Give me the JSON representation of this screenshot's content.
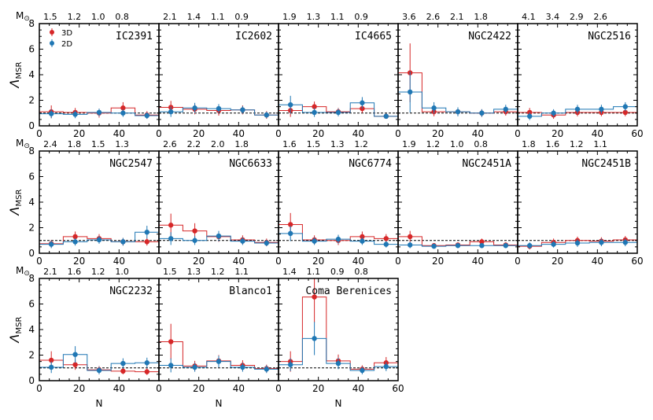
{
  "colors": {
    "3D": "#d62728",
    "2D": "#1f77b4"
  },
  "shared": {
    "xlabel": "N",
    "ylabel_main": "Λ",
    "ylabel_sub": "MSR",
    "mass_label": "M",
    "mass_symbol": "⊙",
    "xlim": [
      0,
      60
    ],
    "ylim": [
      0,
      8
    ],
    "xticks": [
      "0",
      "20",
      "40",
      "60"
    ],
    "yticks": [
      "0",
      "2",
      "4",
      "6",
      "8"
    ],
    "reference_line": 1,
    "legend": [
      "3D",
      "2D"
    ]
  },
  "chart_data": [
    {
      "type": "step-errorbar",
      "title": "IC2391",
      "mass_ticks": [
        "1.5",
        "1.2",
        "1.0",
        "0.8"
      ],
      "x": [
        6,
        18,
        30,
        42,
        54
      ],
      "series": [
        {
          "name": "3D",
          "values": [
            1.1,
            1.05,
            1.0,
            1.4,
            0.85
          ],
          "errors": [
            0.5,
            0.35,
            0.35,
            0.45,
            0.3
          ]
        },
        {
          "name": "2D",
          "values": [
            0.95,
            0.9,
            1.05,
            1.0,
            0.8
          ],
          "errors": [
            0.35,
            0.3,
            0.3,
            0.3,
            0.25
          ]
        }
      ]
    },
    {
      "type": "step-errorbar",
      "title": "IC2602",
      "mass_ticks": [
        "2.1",
        "1.4",
        "1.1",
        "0.9"
      ],
      "x": [
        6,
        18,
        30,
        42,
        54
      ],
      "series": [
        {
          "name": "3D",
          "values": [
            1.45,
            1.3,
            1.2,
            1.25,
            0.85
          ],
          "errors": [
            0.5,
            0.4,
            0.4,
            0.35,
            0.3
          ]
        },
        {
          "name": "2D",
          "values": [
            1.1,
            1.4,
            1.35,
            1.25,
            0.85
          ],
          "errors": [
            0.4,
            0.4,
            0.35,
            0.3,
            0.25
          ]
        }
      ]
    },
    {
      "type": "step-errorbar",
      "title": "IC4665",
      "mass_ticks": [
        "1.9",
        "1.3",
        "1.1",
        "0.9"
      ],
      "x": [
        6,
        18,
        30,
        42,
        54
      ],
      "series": [
        {
          "name": "3D",
          "values": [
            1.2,
            1.5,
            1.1,
            1.35,
            0.75
          ],
          "errors": [
            0.5,
            0.4,
            0.3,
            0.35,
            0.2
          ]
        },
        {
          "name": "2D",
          "values": [
            1.65,
            1.05,
            1.05,
            1.8,
            0.75
          ],
          "errors": [
            0.7,
            0.35,
            0.3,
            0.45,
            0.2
          ]
        }
      ]
    },
    {
      "type": "step-errorbar",
      "title": "NGC2422",
      "mass_ticks": [
        "3.6",
        "2.6",
        "2.1",
        "1.8"
      ],
      "x": [
        6,
        18,
        30,
        42,
        54
      ],
      "series": [
        {
          "name": "3D",
          "values": [
            4.15,
            1.1,
            1.1,
            1.0,
            1.1
          ],
          "errors": [
            2.3,
            0.35,
            0.3,
            0.3,
            0.3
          ]
        },
        {
          "name": "2D",
          "values": [
            2.65,
            1.4,
            1.1,
            1.0,
            1.3
          ],
          "errors": [
            1.6,
            0.45,
            0.35,
            0.3,
            0.35
          ]
        }
      ]
    },
    {
      "type": "step-errorbar",
      "title": "NGC2516",
      "mass_ticks": [
        "4.1",
        "3.4",
        "2.9",
        "2.6"
      ],
      "x": [
        6,
        18,
        30,
        42,
        54
      ],
      "series": [
        {
          "name": "3D",
          "values": [
            1.05,
            0.85,
            1.05,
            1.05,
            1.05
          ],
          "errors": [
            0.35,
            0.3,
            0.3,
            0.3,
            0.3
          ]
        },
        {
          "name": "2D",
          "values": [
            0.75,
            1.0,
            1.3,
            1.3,
            1.5
          ],
          "errors": [
            0.3,
            0.3,
            0.35,
            0.35,
            0.35
          ]
        }
      ]
    },
    {
      "type": "step-errorbar",
      "title": "NGC2547",
      "mass_ticks": [
        "2.4",
        "1.8",
        "1.5",
        "1.3"
      ],
      "x": [
        6,
        18,
        30,
        42,
        54
      ],
      "series": [
        {
          "name": "3D",
          "values": [
            0.75,
            1.3,
            1.15,
            0.9,
            0.9
          ],
          "errors": [
            0.3,
            0.4,
            0.35,
            0.3,
            0.3
          ]
        },
        {
          "name": "2D",
          "values": [
            0.7,
            0.9,
            1.05,
            0.9,
            1.65
          ],
          "errors": [
            0.3,
            0.3,
            0.3,
            0.3,
            0.5
          ]
        }
      ]
    },
    {
      "type": "step-errorbar",
      "title": "NGC6633",
      "mass_ticks": [
        "2.6",
        "2.2",
        "2.0",
        "1.8"
      ],
      "x": [
        6,
        18,
        30,
        42,
        54
      ],
      "series": [
        {
          "name": "3D",
          "values": [
            2.2,
            1.75,
            1.3,
            1.05,
            0.85
          ],
          "errors": [
            0.9,
            0.6,
            0.4,
            0.35,
            0.3
          ]
        },
        {
          "name": "2D",
          "values": [
            1.15,
            1.0,
            1.35,
            0.95,
            0.8
          ],
          "errors": [
            0.5,
            0.35,
            0.4,
            0.3,
            0.25
          ]
        }
      ]
    },
    {
      "type": "step-errorbar",
      "title": "NGC6774",
      "mass_ticks": [
        "1.6",
        "1.5",
        "1.3",
        "1.2"
      ],
      "x": [
        6,
        18,
        30,
        42,
        54
      ],
      "series": [
        {
          "name": "3D",
          "values": [
            2.25,
            1.05,
            1.0,
            1.3,
            1.15
          ],
          "errors": [
            0.9,
            0.35,
            0.35,
            0.4,
            0.35
          ]
        },
        {
          "name": "2D",
          "values": [
            1.55,
            0.95,
            1.1,
            0.95,
            0.7
          ],
          "errors": [
            0.6,
            0.3,
            0.35,
            0.3,
            0.25
          ]
        }
      ]
    },
    {
      "type": "step-errorbar",
      "title": "NGC2451A",
      "mass_ticks": [
        "1.9",
        "1.2",
        "1.0",
        "0.8"
      ],
      "x": [
        6,
        18,
        30,
        42,
        54
      ],
      "series": [
        {
          "name": "3D",
          "values": [
            1.3,
            0.6,
            0.65,
            0.9,
            0.65
          ],
          "errors": [
            0.45,
            0.2,
            0.2,
            0.25,
            0.2
          ]
        },
        {
          "name": "2D",
          "values": [
            0.65,
            0.55,
            0.6,
            0.6,
            0.6
          ],
          "errors": [
            0.25,
            0.2,
            0.2,
            0.2,
            0.2
          ]
        }
      ]
    },
    {
      "type": "step-errorbar",
      "title": "NGC2451B",
      "mass_ticks": [
        "1.8",
        "1.6",
        "1.2",
        "1.1"
      ],
      "x": [
        6,
        18,
        30,
        42,
        54
      ],
      "series": [
        {
          "name": "3D",
          "values": [
            0.55,
            0.85,
            1.0,
            0.95,
            1.05
          ],
          "errors": [
            0.25,
            0.3,
            0.3,
            0.3,
            0.3
          ]
        },
        {
          "name": "2D",
          "values": [
            0.6,
            0.7,
            0.8,
            0.85,
            0.85
          ],
          "errors": [
            0.25,
            0.25,
            0.3,
            0.3,
            0.3
          ]
        }
      ]
    },
    {
      "type": "step-errorbar",
      "title": "NGC2232",
      "mass_ticks": [
        "2.1",
        "1.6",
        "1.2",
        "1.0"
      ],
      "x": [
        6,
        18,
        30,
        42,
        54
      ],
      "series": [
        {
          "name": "3D",
          "values": [
            1.6,
            1.25,
            0.85,
            0.75,
            0.7
          ],
          "errors": [
            0.7,
            0.4,
            0.3,
            0.25,
            0.25
          ]
        },
        {
          "name": "2D",
          "values": [
            1.05,
            2.05,
            0.8,
            1.35,
            1.4
          ],
          "errors": [
            0.45,
            0.65,
            0.3,
            0.4,
            0.4
          ]
        }
      ]
    },
    {
      "type": "step-errorbar",
      "title": "Blanco1",
      "mass_ticks": [
        "1.5",
        "1.3",
        "1.2",
        "1.1"
      ],
      "x": [
        6,
        18,
        30,
        42,
        54
      ],
      "series": [
        {
          "name": "3D",
          "values": [
            3.05,
            1.15,
            1.55,
            1.2,
            0.95
          ],
          "errors": [
            1.4,
            0.4,
            0.45,
            0.4,
            0.3
          ]
        },
        {
          "name": "2D",
          "values": [
            1.2,
            1.05,
            1.5,
            1.05,
            0.9
          ],
          "errors": [
            0.55,
            0.35,
            0.45,
            0.35,
            0.3
          ]
        }
      ]
    },
    {
      "type": "step-errorbar",
      "title": "Coma Berenices",
      "mass_ticks": [
        "1.4",
        "1.1",
        "0.9",
        "0.8"
      ],
      "x": [
        6,
        18,
        30,
        42,
        54
      ],
      "series": [
        {
          "name": "3D",
          "values": [
            1.5,
            6.55,
            1.55,
            0.9,
            1.4
          ],
          "errors": [
            0.8,
            2.0,
            0.5,
            0.3,
            0.45
          ]
        },
        {
          "name": "2D",
          "values": [
            1.25,
            3.3,
            1.35,
            0.8,
            1.1
          ],
          "errors": [
            0.5,
            1.3,
            0.45,
            0.3,
            0.35
          ]
        }
      ]
    }
  ]
}
